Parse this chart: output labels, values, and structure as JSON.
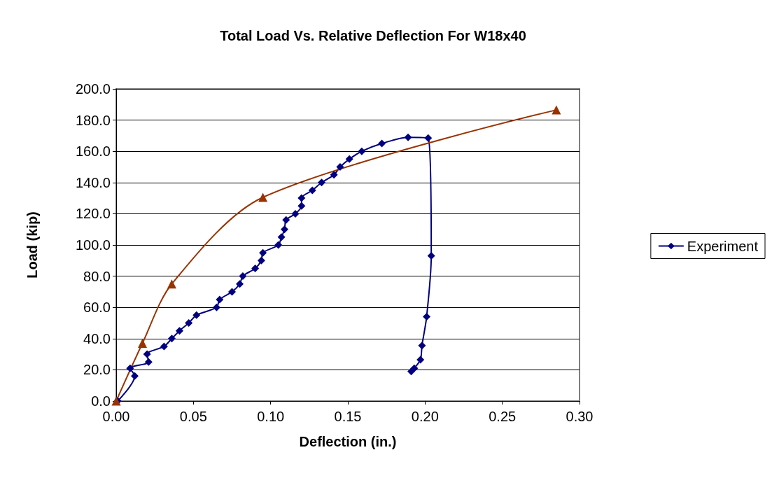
{
  "chart_data": {
    "type": "line",
    "title": "Total Load Vs. Relative Deflection For W18x40",
    "xlabel": "Deflection (in.)",
    "ylabel": "Load (kip)",
    "xlim": [
      0,
      0.3
    ],
    "xticks": [
      {
        "value": 0,
        "label": "0.00"
      },
      {
        "value": 0.05,
        "label": "0.05"
      },
      {
        "value": 0.1,
        "label": "0.10"
      },
      {
        "value": 0.15,
        "label": "0.15"
      },
      {
        "value": 0.2,
        "label": "0.20"
      },
      {
        "value": 0.25,
        "label": "0.25"
      },
      {
        "value": 0.3,
        "label": "0.30"
      }
    ],
    "ylim": [
      0,
      200
    ],
    "yticks": [
      {
        "value": 0,
        "label": "0.0"
      },
      {
        "value": 20,
        "label": "20.0"
      },
      {
        "value": 40,
        "label": "40.0"
      },
      {
        "value": 60,
        "label": "60.0"
      },
      {
        "value": 80,
        "label": "80.0"
      },
      {
        "value": 100,
        "label": "100.0"
      },
      {
        "value": 120,
        "label": "120.0"
      },
      {
        "value": 140,
        "label": "140.0"
      },
      {
        "value": 160,
        "label": "160.0"
      },
      {
        "value": 180,
        "label": "180.0"
      },
      {
        "value": 200,
        "label": "200.0"
      }
    ],
    "grid": "y",
    "legend": "right",
    "series": [
      {
        "name": "Experiment",
        "color": "#000080",
        "marker": "diamond",
        "x": [
          0.001,
          0.012,
          0.009,
          0.021,
          0.02,
          0.031,
          0.036,
          0.041,
          0.047,
          0.052,
          0.065,
          0.067,
          0.075,
          0.08,
          0.082,
          0.09,
          0.094,
          0.095,
          0.105,
          0.107,
          0.109,
          0.11,
          0.116,
          0.12,
          0.12,
          0.127,
          0.133,
          0.141,
          0.145,
          0.151,
          0.159,
          0.172,
          0.189,
          0.202,
          0.204,
          0.201,
          0.198,
          0.197,
          0.193,
          0.191
        ],
        "values": [
          0,
          16,
          21,
          25,
          30,
          35,
          40,
          45,
          50,
          55,
          60,
          65,
          70,
          75,
          80,
          85,
          90,
          95,
          100,
          105,
          110,
          116,
          120,
          125,
          130,
          135,
          140,
          145,
          150,
          155,
          160,
          165,
          169,
          168.5,
          93,
          54,
          35.5,
          26.5,
          21,
          19
        ]
      },
      {
        "color": "#993300",
        "marker": "triangle",
        "x": [
          0,
          0.017,
          0.036,
          0.095,
          0.285
        ],
        "values": [
          0,
          37,
          75,
          130.5,
          186.5
        ]
      }
    ]
  }
}
